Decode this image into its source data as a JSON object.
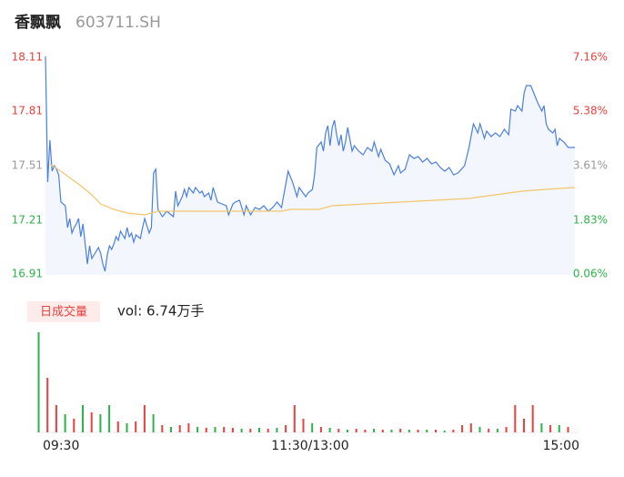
{
  "chart_data": {
    "type": "intraday",
    "title": "香飘飘",
    "subtitle": "603711.SH",
    "xlim": [
      0,
      240
    ],
    "xticks": [
      {
        "value": 0,
        "label": "09:30"
      },
      {
        "value": 120,
        "label": "11:30/13:00"
      },
      {
        "value": 240,
        "label": "15:00"
      }
    ],
    "ylim": [
      16.91,
      18.11
    ],
    "yticks": [
      18.11,
      17.81,
      17.51,
      17.21,
      16.91
    ],
    "ytick_colors": [
      "#e8413e",
      "#e8413e",
      "#999999",
      "#2db34a",
      "#2db34a"
    ],
    "y2lim": [
      0.06,
      7.16
    ],
    "y2ticks": [
      {
        "value": 7.16,
        "label": "7.16%"
      },
      {
        "value": 5.38,
        "label": "5.38%"
      },
      {
        "value": 3.61,
        "label": "3.61%"
      },
      {
        "value": 1.83,
        "label": "1.83%"
      },
      {
        "value": 0.06,
        "label": "0.06%"
      }
    ],
    "series": [
      {
        "name": "price",
        "color": "#4a7fe0",
        "x": [
          0,
          1,
          2,
          3,
          4,
          5,
          6,
          7,
          9,
          10,
          11,
          12,
          13,
          14,
          15,
          16,
          17,
          18,
          19,
          20,
          21,
          22,
          24,
          25,
          26,
          27,
          28,
          29,
          30,
          31,
          32,
          33,
          34,
          36,
          37,
          38,
          39,
          40,
          41,
          43,
          44,
          45,
          47,
          48,
          49,
          50,
          51,
          53,
          55,
          58,
          59,
          60,
          62,
          63,
          64,
          65,
          67,
          68,
          70,
          71,
          72,
          74,
          75,
          76,
          78,
          80,
          82,
          83,
          85,
          86,
          88,
          90,
          91,
          93,
          95,
          97,
          99,
          101,
          103,
          105,
          107,
          110,
          112,
          114,
          115,
          118,
          119,
          121,
          122,
          123,
          125,
          126,
          127,
          128,
          129,
          130,
          131,
          132,
          133,
          134,
          135,
          136,
          137,
          139,
          140,
          142,
          144,
          146,
          148,
          149,
          151,
          152,
          154,
          156,
          158,
          160,
          161,
          163,
          165,
          167,
          169,
          171,
          173,
          175,
          177,
          179,
          181,
          183,
          185,
          187,
          190,
          192,
          194,
          196,
          197,
          199,
          200,
          202,
          204,
          206,
          208,
          210,
          211,
          213,
          214,
          216,
          217,
          218,
          220,
          222,
          223,
          225,
          226,
          227,
          228,
          230,
          231,
          232,
          233,
          235,
          237,
          240
        ],
        "values": [
          18.11,
          17.42,
          17.65,
          17.48,
          17.51,
          17.49,
          17.46,
          17.31,
          17.29,
          17.17,
          17.22,
          17.14,
          17.17,
          17.19,
          17.22,
          17.12,
          17.19,
          17.08,
          16.97,
          17.07,
          17.0,
          17.02,
          17.06,
          17.03,
          16.97,
          16.93,
          17.02,
          17.07,
          17.05,
          17.08,
          17.12,
          17.1,
          17.15,
          17.11,
          17.17,
          17.12,
          17.14,
          17.09,
          17.13,
          17.11,
          17.17,
          17.22,
          17.14,
          17.17,
          17.47,
          17.49,
          17.27,
          17.23,
          17.26,
          17.23,
          17.37,
          17.29,
          17.34,
          17.38,
          17.34,
          17.39,
          17.36,
          17.39,
          17.36,
          17.37,
          17.34,
          17.36,
          17.32,
          17.39,
          17.31,
          17.3,
          17.29,
          17.24,
          17.3,
          17.31,
          17.32,
          17.24,
          17.29,
          17.24,
          17.28,
          17.27,
          17.29,
          17.26,
          17.28,
          17.31,
          17.28,
          17.48,
          17.42,
          17.34,
          17.39,
          17.34,
          17.36,
          17.38,
          17.46,
          17.61,
          17.64,
          17.59,
          17.69,
          17.73,
          17.62,
          17.72,
          17.76,
          17.68,
          17.62,
          17.68,
          17.59,
          17.64,
          17.72,
          17.59,
          17.62,
          17.59,
          17.57,
          17.61,
          17.59,
          17.64,
          17.56,
          17.6,
          17.54,
          17.52,
          17.46,
          17.51,
          17.47,
          17.49,
          17.57,
          17.55,
          17.56,
          17.53,
          17.55,
          17.52,
          17.53,
          17.5,
          17.48,
          17.5,
          17.46,
          17.47,
          17.51,
          17.61,
          17.74,
          17.69,
          17.74,
          17.66,
          17.7,
          17.67,
          17.69,
          17.67,
          17.71,
          17.68,
          17.82,
          17.81,
          17.84,
          17.81,
          17.91,
          17.95,
          17.95,
          17.89,
          17.86,
          17.81,
          17.84,
          17.74,
          17.71,
          17.69,
          17.71,
          17.62,
          17.66,
          17.64,
          17.61,
          17.61
        ]
      },
      {
        "name": "average",
        "color": "#f3c66b",
        "x": [
          2,
          8,
          16,
          21,
          25,
          31,
          37,
          45,
          51,
          60,
          107,
          111,
          124,
          130,
          161,
          192,
          216,
          227,
          240
        ],
        "values": [
          17.52,
          17.47,
          17.4,
          17.35,
          17.3,
          17.27,
          17.25,
          17.24,
          17.26,
          17.26,
          17.26,
          17.27,
          17.27,
          17.29,
          17.31,
          17.33,
          17.37,
          17.38,
          17.39
        ]
      }
    ],
    "volume": {
      "legend": "日成交量",
      "label": "vol: 6.74万手",
      "ylim": [
        0,
        110
      ],
      "up_color": "#e8413e",
      "down_color": "#2db34a",
      "x": [
        0,
        4,
        8,
        12,
        16,
        20,
        24,
        28,
        32,
        36,
        40,
        44,
        48,
        52,
        56,
        60,
        64,
        68,
        72,
        76,
        80,
        84,
        88,
        92,
        96,
        100,
        104,
        108,
        112,
        116,
        120,
        124,
        128,
        132,
        136,
        140,
        144,
        148,
        152,
        156,
        160,
        164,
        168,
        172,
        176,
        180,
        184,
        188,
        192,
        196,
        200,
        204,
        208,
        212,
        216,
        220,
        224,
        228,
        232,
        236,
        240
      ],
      "values": [
        110,
        60,
        30,
        20,
        15,
        30,
        22,
        20,
        30,
        12,
        10,
        12,
        30,
        20,
        8,
        6,
        8,
        10,
        6,
        5,
        6,
        6,
        5,
        4,
        4,
        5,
        4,
        5,
        8,
        30,
        15,
        10,
        6,
        5,
        4,
        3,
        4,
        3,
        4,
        3,
        3,
        4,
        3,
        3,
        3,
        3,
        2,
        3,
        8,
        10,
        6,
        4,
        4,
        6,
        30,
        15,
        30,
        10,
        8,
        8,
        6
      ],
      "up": [
        false,
        true,
        true,
        false,
        true,
        false,
        true,
        false,
        false,
        true,
        false,
        true,
        true,
        false,
        true,
        false,
        true,
        true,
        false,
        true,
        false,
        true,
        true,
        false,
        true,
        false,
        true,
        false,
        true,
        true,
        true,
        false,
        true,
        false,
        true,
        false,
        true,
        true,
        false,
        true,
        false,
        true,
        false,
        true,
        false,
        true,
        false,
        true,
        true,
        true,
        false,
        true,
        false,
        true,
        true,
        true,
        true,
        false,
        true,
        false,
        true
      ]
    }
  }
}
